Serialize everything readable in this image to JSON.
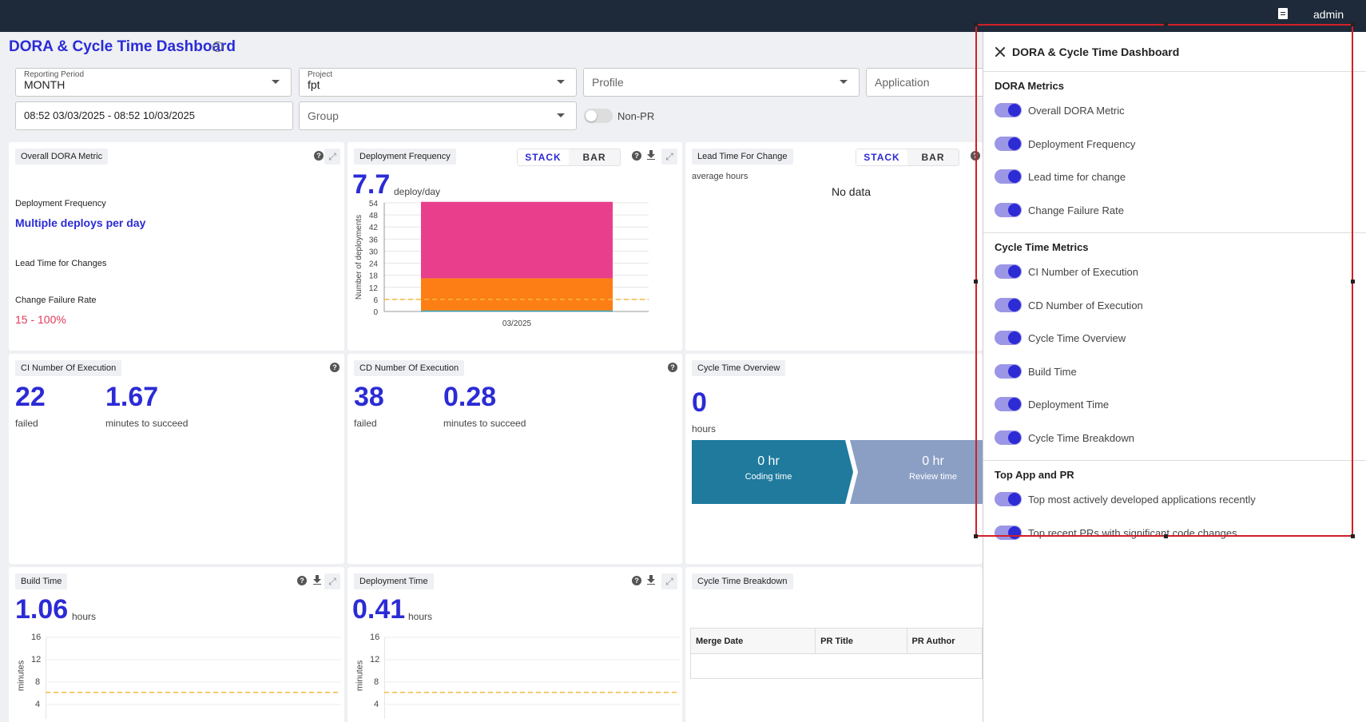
{
  "topbar": {
    "doc_icon": "document-icon",
    "user": "admin"
  },
  "page": {
    "title": "DORA & Cycle Time Dashboard",
    "info_icon": "i"
  },
  "filters": {
    "reporting_period": {
      "label": "Reporting Period",
      "value": "MONTH"
    },
    "project": {
      "label": "Project",
      "value": "fpt"
    },
    "profile": {
      "placeholder": "Profile"
    },
    "application": {
      "placeholder": "Application"
    },
    "date_range": {
      "value": "08:52 03/03/2025 - 08:52 10/03/2025"
    },
    "group": {
      "placeholder": "Group"
    },
    "non_pr": {
      "label": "Non-PR",
      "on": false
    }
  },
  "cards": {
    "overall": {
      "title": "Overall DORA Metric",
      "deploy_freq_label": "Deployment Frequency",
      "deploy_freq_value": "Multiple deploys per day",
      "lead_time_label": "Lead Time for Changes",
      "cfr_label": "Change Failure Rate",
      "cfr_value": "15 - 100%"
    },
    "deploy_freq": {
      "title": "Deployment Frequency",
      "stack": "STACK",
      "bar": "BAR",
      "value": "7.7",
      "unit": "deploy/day"
    },
    "lead_time": {
      "title": "Lead Time For Change",
      "stack": "STACK",
      "bar": "BAR",
      "sub": "average hours",
      "empty": "No data"
    },
    "ci": {
      "title": "CI Number Of Execution",
      "failed": "22",
      "failed_label": "failed",
      "minutes": "1.67",
      "minutes_label": "minutes to succeed"
    },
    "cd": {
      "title": "CD Number Of Execution",
      "failed": "38",
      "failed_label": "failed",
      "minutes": "0.28",
      "minutes_label": "minutes to succeed"
    },
    "cycle_overview": {
      "title": "Cycle Time Overview",
      "value": "0",
      "unit": "hours",
      "coding_value": "0 hr",
      "coding_label": "Coding time",
      "review_value": "0 hr",
      "review_label": "Review time"
    },
    "build_time": {
      "title": "Build Time",
      "value": "1.06",
      "unit": "hours",
      "ylabel": "minutes",
      "ticks": [
        "16",
        "12",
        "8",
        "4"
      ]
    },
    "deployment_time": {
      "title": "Deployment Time",
      "value": "0.41",
      "unit": "hours",
      "ylabel": "minutes",
      "ticks": [
        "16",
        "12",
        "8",
        "4"
      ]
    },
    "cycle_breakdown": {
      "title": "Cycle Time Breakdown",
      "columns": [
        "Merge Date",
        "PR Title",
        "PR Author"
      ]
    }
  },
  "chart_data": {
    "type": "bar",
    "categories": [
      "03/2025"
    ],
    "series": [
      {
        "values": [
          0.5
        ],
        "color": "#17a2b8"
      },
      {
        "values": [
          16
        ],
        "color": "#fd7e14"
      },
      {
        "values": [
          38
        ],
        "color": "#e83e8c"
      }
    ],
    "ylabel": "Number of deployments",
    "ylim": [
      0,
      54
    ],
    "yticks": [
      "54",
      "48",
      "42",
      "36",
      "30",
      "24",
      "18",
      "12",
      "6",
      "0"
    ],
    "threshold": 6,
    "threshold_color": "#f5b942"
  },
  "panel": {
    "title": "DORA & Cycle Time Dashboard",
    "sections": [
      {
        "title": "DORA Metrics",
        "items": [
          "Overall DORA Metric",
          "Deployment Frequency",
          "Lead time for change",
          "Change Failure Rate"
        ]
      },
      {
        "title": "Cycle Time Metrics",
        "items": [
          "CI Number of Execution",
          "CD Number of Execution",
          "Cycle Time Overview",
          "Build Time",
          "Deployment Time",
          "Cycle Time Breakdown"
        ]
      },
      {
        "title": "Top App and PR",
        "items": [
          "Top most actively developed applications recently",
          "Top recent PRs with significant code changes"
        ]
      }
    ]
  }
}
